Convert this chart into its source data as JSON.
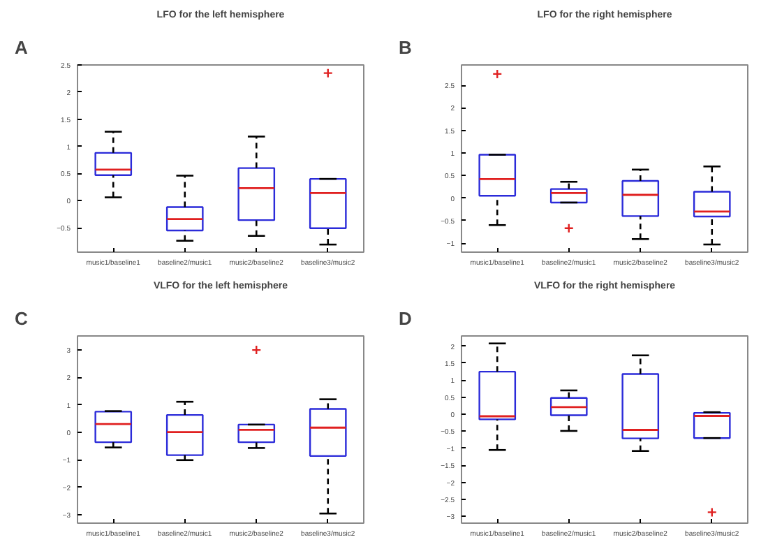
{
  "chart_data": [
    {
      "type": "box",
      "title": "LFO for the left hemisphere",
      "annotations": [
        "A"
      ],
      "categories": [
        "music1/baseline1",
        "baseline2/music1",
        "music2/baseline2",
        "baseline3/music2"
      ],
      "ylim": [
        -0.95,
        2.5
      ],
      "yticks": [
        -0.5,
        0,
        0.5,
        1,
        1.5,
        2,
        2.5
      ],
      "grid": false,
      "boxes": [
        {
          "low": 0.06,
          "q1": 0.47,
          "median": 0.57,
          "q3": 0.88,
          "high": 1.27
        },
        {
          "low": -0.74,
          "q1": -0.55,
          "median": -0.34,
          "q3": -0.12,
          "high": 0.46
        },
        {
          "low": -0.65,
          "q1": -0.36,
          "median": 0.23,
          "q3": 0.6,
          "high": 1.18
        },
        {
          "low": -0.81,
          "q1": -0.51,
          "median": 0.14,
          "q3": 0.4,
          "high": 0.4,
          "outliers": [
            2.35
          ]
        }
      ]
    },
    {
      "type": "box",
      "title": "LFO for the right hemisphere",
      "annotations": [
        "B"
      ],
      "categories": [
        "music1/baseline1",
        "baseline2/music1",
        "music2/baseline2",
        "baseline3/music2"
      ],
      "ylim": [
        -1.2,
        2.95
      ],
      "yticks": [
        -1,
        -0.5,
        0,
        0.5,
        1,
        1.5,
        2,
        2.5
      ],
      "grid": false,
      "boxes": [
        {
          "low": -0.6,
          "q1": 0.05,
          "median": 0.42,
          "q3": 0.96,
          "high": 0.96,
          "outliers": [
            2.75
          ]
        },
        {
          "low": -0.1,
          "q1": -0.1,
          "median": 0.11,
          "q3": 0.2,
          "high": 0.36,
          "outliers": [
            -0.67
          ]
        },
        {
          "low": -0.91,
          "q1": -0.4,
          "median": 0.07,
          "q3": 0.38,
          "high": 0.63
        },
        {
          "low": -1.03,
          "q1": -0.41,
          "median": -0.3,
          "q3": 0.14,
          "high": 0.7
        }
      ]
    },
    {
      "type": "box",
      "title": "VLFO for the left hemisphere",
      "annotations": [
        "C"
      ],
      "categories": [
        "music1/baseline1",
        "baseline2/music1",
        "music2/baseline2",
        "baseline3/music2"
      ],
      "ylim": [
        -3.3,
        3.5
      ],
      "yticks": [
        -3,
        -2,
        -1,
        0,
        1,
        2,
        3
      ],
      "grid": false,
      "boxes": [
        {
          "low": -0.55,
          "q1": -0.36,
          "median": 0.3,
          "q3": 0.75,
          "high": 0.77
        },
        {
          "low": -1.01,
          "q1": -0.83,
          "median": 0.01,
          "q3": 0.63,
          "high": 1.11
        },
        {
          "low": -0.57,
          "q1": -0.36,
          "median": 0.09,
          "q3": 0.28,
          "high": 0.28,
          "outliers": [
            2.99
          ]
        },
        {
          "low": -2.95,
          "q1": -0.86,
          "median": 0.17,
          "q3": 0.85,
          "high": 1.2
        }
      ]
    },
    {
      "type": "box",
      "title": "VLFO for the right hemisphere",
      "annotations": [
        "D"
      ],
      "categories": [
        "music1/baseline1",
        "baseline2/music1",
        "music2/baseline2",
        "baseline3/music2"
      ],
      "ylim": [
        -3.2,
        2.3
      ],
      "yticks": [
        -3,
        -2.5,
        -2,
        -1.5,
        -1,
        -0.5,
        0,
        0.5,
        1,
        1.5,
        2
      ],
      "grid": false,
      "boxes": [
        {
          "low": -1.05,
          "q1": -0.15,
          "median": -0.06,
          "q3": 1.25,
          "high": 2.08
        },
        {
          "low": -0.49,
          "q1": -0.03,
          "median": 0.21,
          "q3": 0.48,
          "high": 0.7
        },
        {
          "low": -1.08,
          "q1": -0.71,
          "median": -0.46,
          "q3": 1.18,
          "high": 1.73
        },
        {
          "low": -0.7,
          "q1": -0.7,
          "median": -0.05,
          "q3": 0.04,
          "high": 0.06,
          "outliers": [
            -2.88
          ]
        }
      ]
    }
  ]
}
